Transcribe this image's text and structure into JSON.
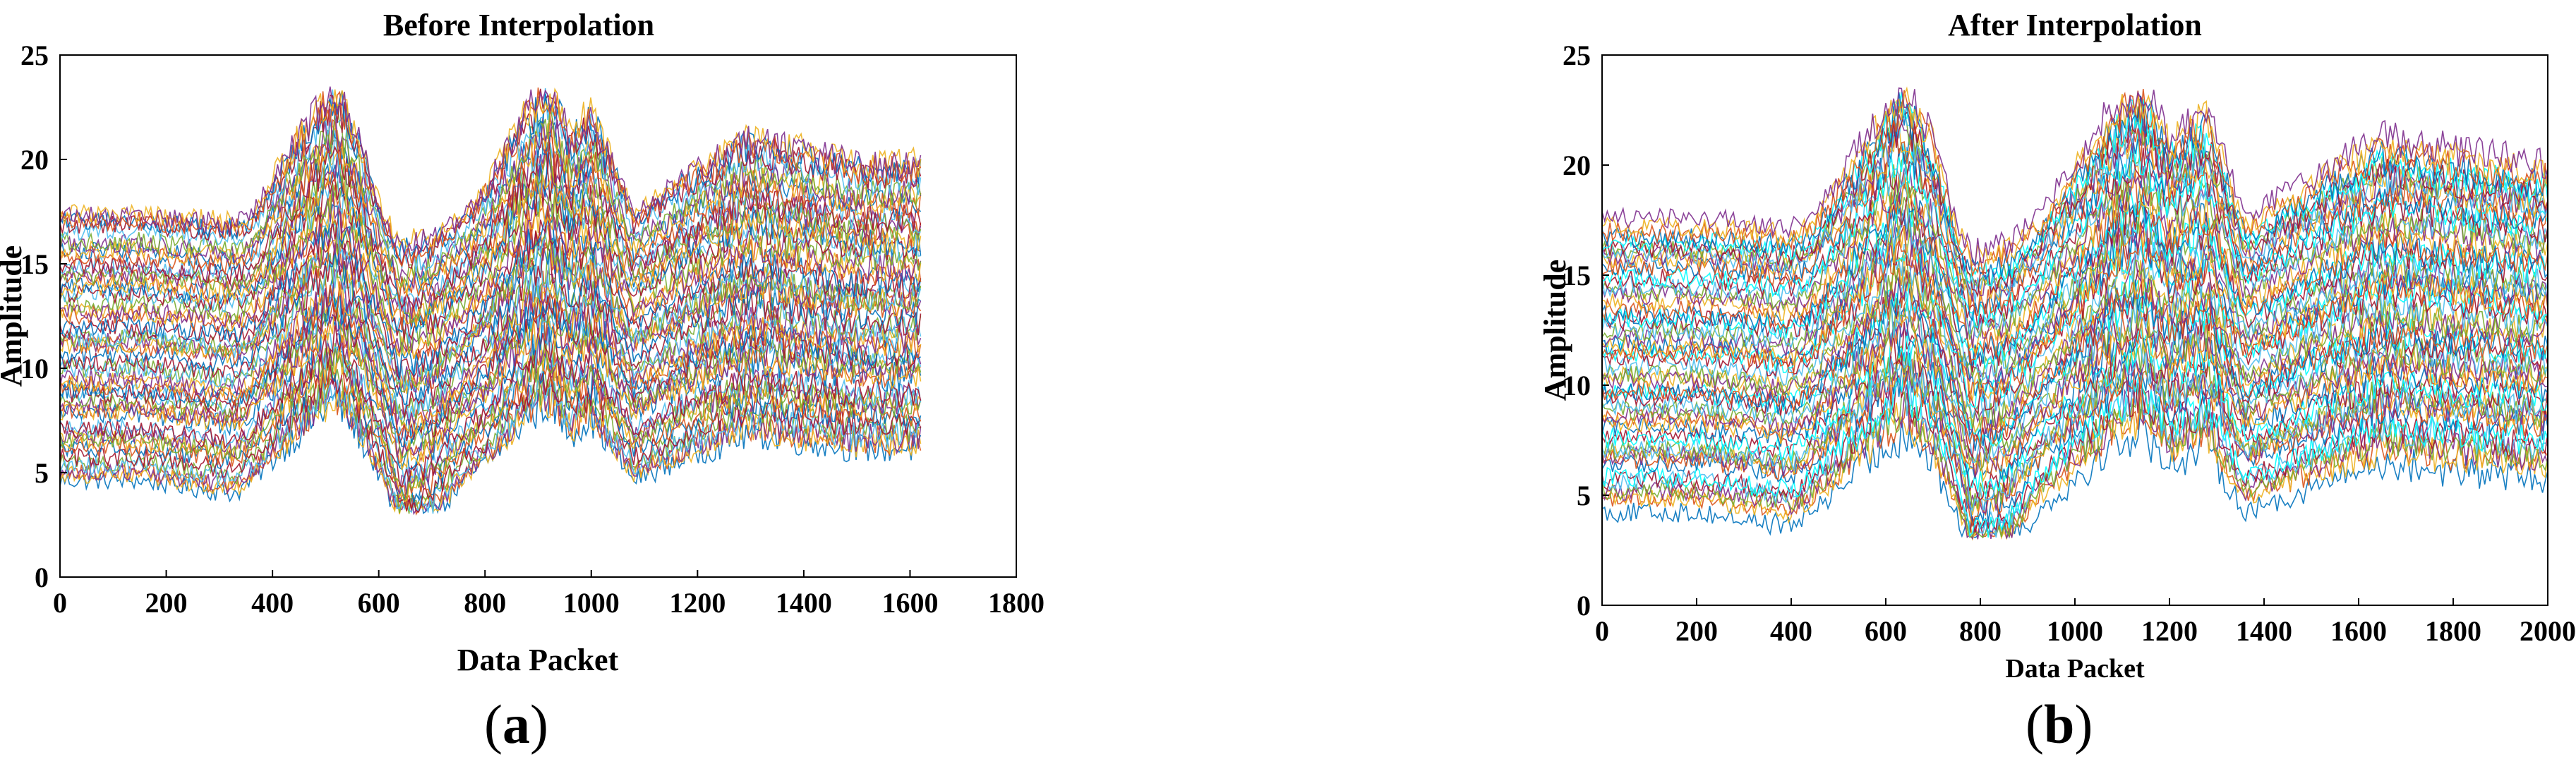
{
  "figure": {
    "panel_a_label": "(a)",
    "panel_a_letter": "a",
    "panel_b_label": "(b)",
    "panel_b_letter": "b"
  },
  "palette": [
    "#0072BD",
    "#D95319",
    "#EDB120",
    "#7E2F8E",
    "#77AC30",
    "#4DBEEE",
    "#A2142F",
    "#00FFFF"
  ],
  "chart_data": [
    {
      "type": "line",
      "title": "Before Interpolation",
      "xlabel": "Data Packet",
      "ylabel": "Amplitude",
      "xlim": [
        0,
        1800
      ],
      "ylim": [
        0,
        25
      ],
      "xticks": [
        0,
        200,
        400,
        600,
        800,
        1000,
        1200,
        1400,
        1600,
        1800
      ],
      "yticks": [
        0,
        5,
        10,
        15,
        20,
        25
      ],
      "x_extent": [
        0,
        1620
      ],
      "grid": false,
      "legend": "none",
      "series_count": 60,
      "series_amplitude_range": [
        6,
        19
      ],
      "envelope": {
        "description": "median amplitude vs data packet (approximate)",
        "x": [
          0,
          150,
          330,
          360,
          450,
          520,
          560,
          640,
          700,
          800,
          880,
          920,
          960,
          1000,
          1080,
          1180,
          1300,
          1400,
          1500,
          1620
        ],
        "y": [
          11,
          11,
          10.5,
          11,
          14,
          16,
          14,
          9,
          9.5,
          12,
          15,
          16,
          14,
          15,
          11,
          12.5,
          14,
          13.5,
          13,
          13
        ]
      }
    },
    {
      "type": "line",
      "title": "After Interpolation",
      "xlabel": "Data Packet",
      "ylabel": "Amplitude",
      "xlim": [
        0,
        2000
      ],
      "ylim": [
        0,
        25
      ],
      "xticks": [
        0,
        200,
        400,
        600,
        800,
        1000,
        1200,
        1400,
        1600,
        1800,
        2000
      ],
      "yticks": [
        0,
        5,
        10,
        15,
        20,
        25
      ],
      "x_extent": [
        0,
        2000
      ],
      "grid": false,
      "legend": "none",
      "series_count": 60,
      "series_amplitude_range": [
        6,
        19
      ],
      "envelope": {
        "description": "median amplitude vs data packet (approximate)",
        "x": [
          0,
          200,
          400,
          440,
          560,
          640,
          700,
          780,
          860,
          960,
          1080,
          1140,
          1200,
          1280,
          1360,
          1500,
          1650,
          1800,
          2000
        ],
        "y": [
          11,
          11,
          10.5,
          11,
          14,
          16,
          14,
          9,
          9.5,
          12,
          15,
          16,
          14,
          15,
          11,
          12.5,
          14,
          13.5,
          13
        ]
      }
    }
  ]
}
